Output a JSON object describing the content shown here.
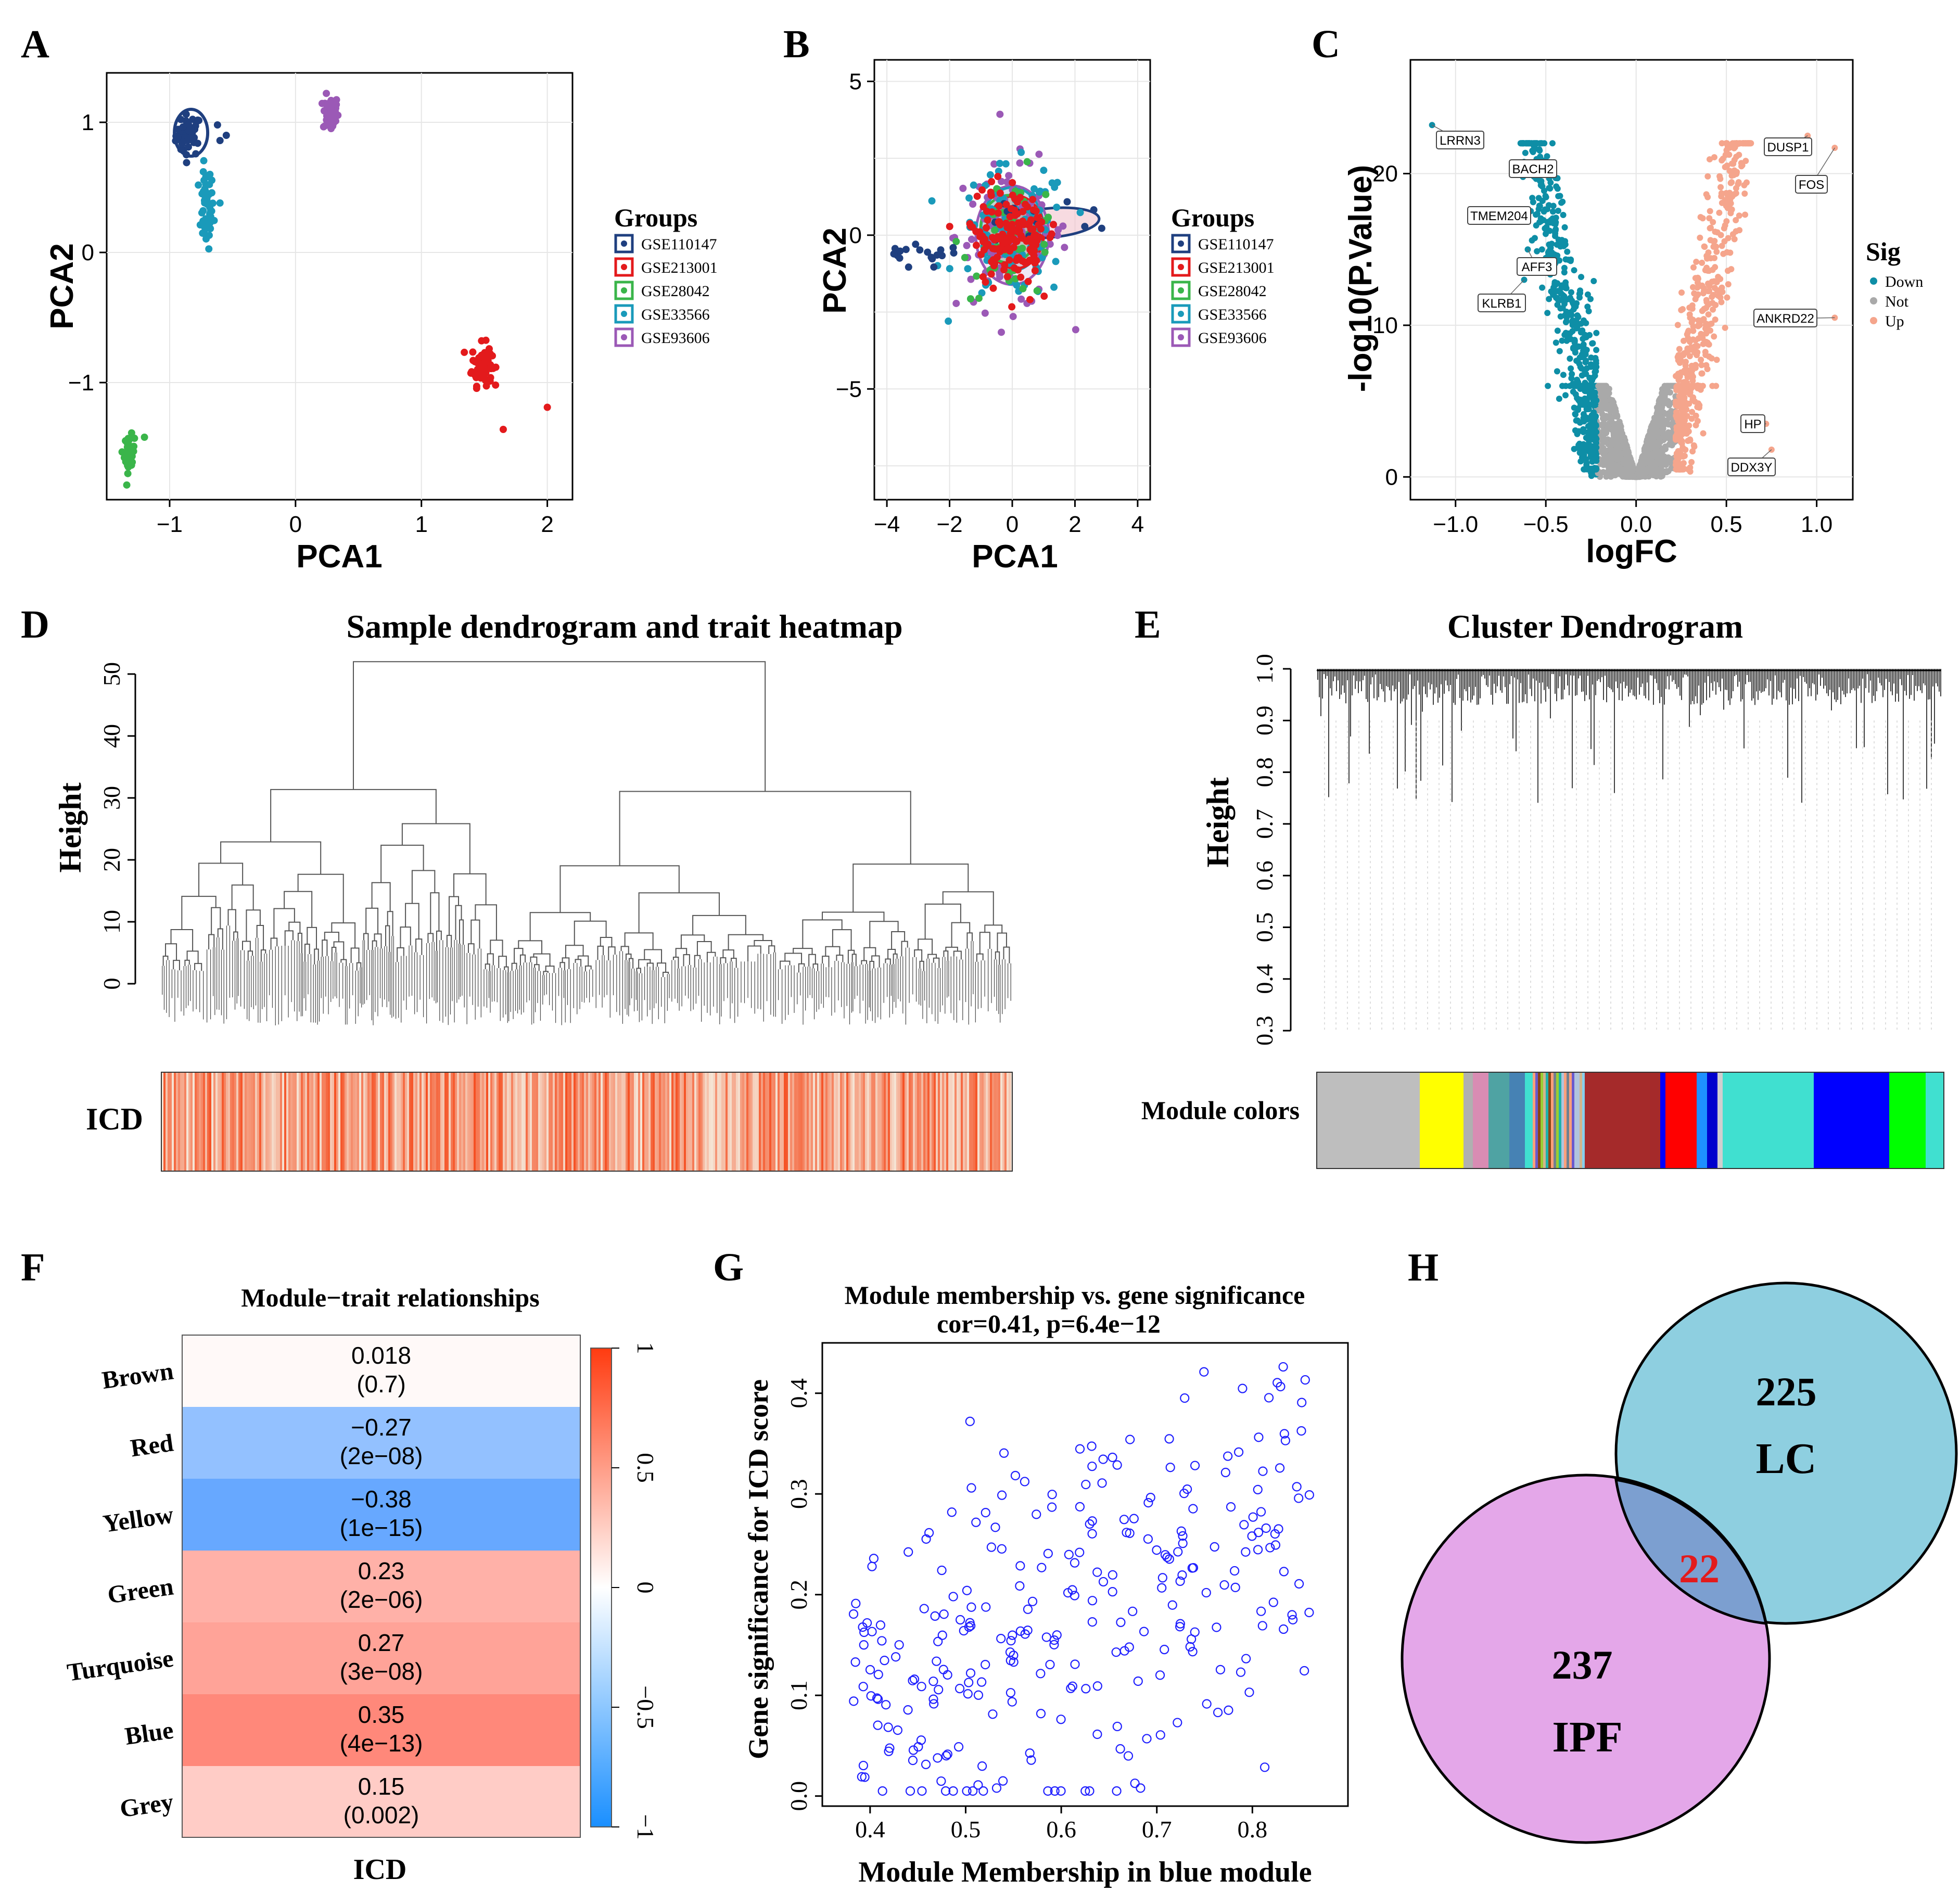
{
  "panels": {
    "A": {
      "letter": "A"
    },
    "B": {
      "letter": "B"
    },
    "C": {
      "letter": "C"
    },
    "D": {
      "letter": "D"
    },
    "E": {
      "letter": "E"
    },
    "F": {
      "letter": "F"
    },
    "G": {
      "letter": "G"
    },
    "H": {
      "letter": "H"
    }
  },
  "colors": {
    "GSE110147": "#1f3f7f",
    "GSE213001": "#e31a1c",
    "GSE28042": "#3ab54a",
    "GSE33566": "#1a9aba",
    "GSE93606": "#9b59b6",
    "down": "#0e8ea6",
    "not": "#a9a9a9",
    "up": "#f5a58c"
  },
  "chart_data": [
    {
      "id": "A",
      "type": "scatter",
      "xlabel": "PCA1",
      "ylabel": "PCA2",
      "xlim": [
        -1.5,
        2.2
      ],
      "ylim": [
        -1.9,
        1.38
      ],
      "xticks": [
        -1,
        0,
        1,
        2
      ],
      "yticks": [
        -1,
        0,
        1
      ],
      "legend_title": "Groups",
      "groups": [
        "GSE110147",
        "GSE213001",
        "GSE28042",
        "GSE33566",
        "GSE93606"
      ],
      "clusters": [
        {
          "group": "GSE110147",
          "cx": -0.85,
          "cy": 0.9,
          "sx": 0.05,
          "sy": 0.08,
          "n": 45
        },
        {
          "group": "GSE33566",
          "cx": -0.71,
          "cy": 0.33,
          "sx": 0.03,
          "sy": 0.15,
          "n": 50
        },
        {
          "group": "GSE93606",
          "cx": 0.28,
          "cy": 1.07,
          "sx": 0.03,
          "sy": 0.07,
          "n": 60
        },
        {
          "group": "GSE213001",
          "cx": 1.48,
          "cy": -0.86,
          "sx": 0.04,
          "sy": 0.08,
          "n": 70
        },
        {
          "group": "GSE28042",
          "cx": -1.32,
          "cy": -1.55,
          "sx": 0.02,
          "sy": 0.07,
          "n": 40
        }
      ]
    },
    {
      "id": "B",
      "type": "scatter",
      "xlabel": "PCA1",
      "ylabel": "PCA2",
      "xlim": [
        -4.4,
        4.4
      ],
      "ylim": [
        -8.6,
        5.7
      ],
      "xticks": [
        -4,
        -2,
        0,
        2,
        4
      ],
      "yticks": [
        -5,
        0,
        5
      ],
      "legend_title": "Groups",
      "groups": [
        "GSE110147",
        "GSE213001",
        "GSE28042",
        "GSE33566",
        "GSE93606"
      ]
    },
    {
      "id": "C",
      "type": "scatter",
      "xlabel": "logFC",
      "ylabel": "-log10(P.Value)",
      "xlim": [
        -1.25,
        1.2
      ],
      "ylim": [
        -1.5,
        27.5
      ],
      "xticks": [
        -1.0,
        -0.5,
        0.0,
        0.5,
        1.0
      ],
      "xtick_labels": [
        "−1.0",
        "−0.5",
        "0.0",
        "0.5",
        "1.0"
      ],
      "yticks": [
        0,
        10,
        20
      ],
      "legend_title": "Sig",
      "legend": [
        "Down",
        "Not",
        "Up"
      ],
      "labeled_genes": [
        {
          "gene": "LRRN3",
          "x": -1.13,
          "y": 23.2
        },
        {
          "gene": "BACH2",
          "x": -0.6,
          "y": 20.6
        },
        {
          "gene": "TMEM204",
          "x": -0.63,
          "y": 17.4
        },
        {
          "gene": "AFF3",
          "x": -0.6,
          "y": 15.0
        },
        {
          "gene": "KLRB1",
          "x": -0.62,
          "y": 13.0
        },
        {
          "gene": "DUSP1",
          "x": 0.95,
          "y": 22.5
        },
        {
          "gene": "FOS",
          "x": 1.1,
          "y": 21.7
        },
        {
          "gene": "ANKRD22",
          "x": 1.1,
          "y": 10.5
        },
        {
          "gene": "HP",
          "x": 0.72,
          "y": 3.5
        },
        {
          "gene": "DDX3Y",
          "x": 0.75,
          "y": 1.8
        }
      ]
    },
    {
      "id": "D",
      "type": "dendrogram",
      "title": "Sample dendrogram and trait heatmap",
      "ylabel": "Height",
      "yticks": [
        0,
        10,
        20,
        30,
        40,
        50
      ],
      "trait_label": "ICD"
    },
    {
      "id": "E",
      "type": "dendrogram",
      "title": "Cluster Dendrogram",
      "ylabel": "Height",
      "yticks": [
        0.3,
        0.4,
        0.5,
        0.6,
        0.7,
        0.8,
        0.9,
        1.0
      ],
      "ytick_labels": [
        "0.3",
        "0.4",
        "0.5",
        "0.6",
        "0.7",
        "0.8",
        "0.9",
        "1.0"
      ],
      "module_label": "Module colors"
    },
    {
      "id": "F",
      "type": "heatmap",
      "title": "Module−trait relationships",
      "xlabel": "ICD",
      "rows": [
        {
          "module": "Brown",
          "r": "0.018",
          "p": "(0.7)",
          "value": 0.018
        },
        {
          "module": "Red",
          "r": "−0.27",
          "p": "(2e−08)",
          "value": -0.27
        },
        {
          "module": "Yellow",
          "r": "−0.38",
          "p": "(1e−15)",
          "value": -0.38
        },
        {
          "module": "Green",
          "r": "0.23",
          "p": "(2e−06)",
          "value": 0.23
        },
        {
          "module": "Turquoise",
          "r": "0.27",
          "p": "(3e−08)",
          "value": 0.27
        },
        {
          "module": "Blue",
          "r": "0.35",
          "p": "(4e−13)",
          "value": 0.35
        },
        {
          "module": "Grey",
          "r": "0.15",
          "p": "(0.002)",
          "value": 0.15
        }
      ],
      "colorbar_ticks": [
        "1",
        "0.5",
        "0",
        "−0.5",
        "−1"
      ]
    },
    {
      "id": "G",
      "type": "scatter",
      "title": "Module membership vs. gene significance",
      "subtitle": "cor=0.41, p=6.4e−12",
      "xlabel": "Module Membership in blue module",
      "ylabel": "Gene significance for ICD score",
      "xlim": [
        0.35,
        0.9
      ],
      "ylim": [
        -0.01,
        0.45
      ],
      "xticks": [
        0.4,
        0.5,
        0.6,
        0.7,
        0.8
      ],
      "xtick_labels": [
        "0.4",
        "0.5",
        "0.6",
        "0.7",
        "0.8"
      ],
      "yticks": [
        0.0,
        0.1,
        0.2,
        0.3,
        0.4
      ],
      "ytick_labels": [
        "0.0",
        "0.1",
        "0.2",
        "0.3",
        "0.4"
      ],
      "n_points": 280
    },
    {
      "id": "H",
      "type": "venn",
      "sets": [
        {
          "name": "LC",
          "only": 225
        },
        {
          "name": "IPF",
          "only": 237
        }
      ],
      "intersection": 22
    }
  ]
}
